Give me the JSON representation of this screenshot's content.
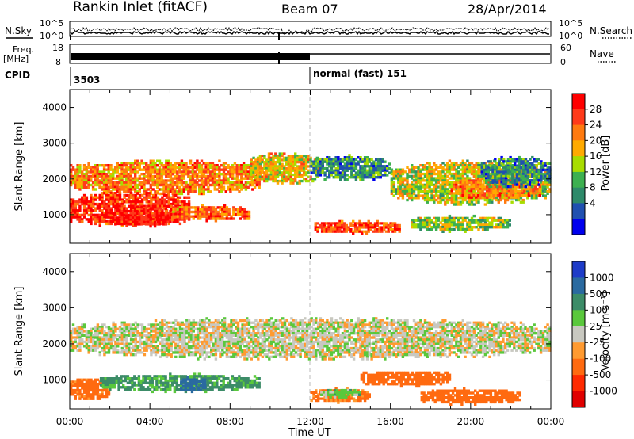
{
  "header": {
    "radar": "Rankin Inlet (fitACF)",
    "beam": "Beam 07",
    "date": "28/Apr/2014"
  },
  "strips": {
    "nsky_label": "N.Sky",
    "nsearch_label": "N.Search",
    "noise_ticks_left": [
      "10^5",
      "10^0"
    ],
    "noise_ticks_right": [
      "10^5",
      "10^0"
    ],
    "freq_label": "Freq.",
    "freq_unit": "[MHz]",
    "freq_ticks": [
      "18",
      "8"
    ],
    "nave_label": "Nave",
    "nave_ticks": [
      "60",
      "0"
    ],
    "cpid_label": "CPID",
    "cpid_start": "3503",
    "cpid_change": "normal (fast) 151"
  },
  "axes": {
    "ylabel": "Slant Range [km]",
    "xlabel": "Time UT",
    "x_ticks": [
      "00:00",
      "04:00",
      "08:00",
      "12:00",
      "16:00",
      "20:00",
      "00:00"
    ],
    "y_ticks": [
      "1000",
      "2000",
      "3000",
      "4000"
    ]
  },
  "power_colorbar": {
    "label": "Power [dB]",
    "ticks": [
      "28",
      "24",
      "20",
      "16",
      "12",
      "8",
      "4"
    ],
    "colors": [
      "#ff0000",
      "#ff3a1a",
      "#ff7a10",
      "#ffaa00",
      "#a8dc00",
      "#3db050",
      "#2e8a6a",
      "#2050b0",
      "#0000ee"
    ]
  },
  "velocity_colorbar": {
    "label": "Velocity [m s⁻¹]",
    "ticks": [
      "1000",
      "500",
      "100",
      "25",
      "-25",
      "-100",
      "-500",
      "-1000"
    ],
    "colors": [
      "#1e3cc8",
      "#2a6aa0",
      "#3c8c68",
      "#5ac83c",
      "#c8c8c0",
      "#ff9a30",
      "#ff6a10",
      "#ff2a00",
      "#e00000"
    ]
  },
  "chart_data": [
    {
      "type": "heatmap",
      "title": "Power",
      "xlabel": "Time UT",
      "ylabel": "Slant Range [km]",
      "xlim": [
        0,
        24
      ],
      "ylim": [
        200,
        4500
      ],
      "colorbar": {
        "label": "Power [dB]",
        "range": [
          0,
          30
        ]
      },
      "blobs": [
        {
          "t": [
            0.0,
            9.5
          ],
          "r": [
            1500,
            2600
          ],
          "v": 22
        },
        {
          "t": [
            0.0,
            6.0
          ],
          "r": [
            600,
            1700
          ],
          "v": 28
        },
        {
          "t": [
            2.0,
            5.5
          ],
          "r": [
            650,
            1250
          ],
          "v": 30
        },
        {
          "t": [
            5.0,
            9.0
          ],
          "r": [
            800,
            1300
          ],
          "v": 24
        },
        {
          "t": [
            9.0,
            12.5
          ],
          "r": [
            1800,
            2800
          ],
          "v": 18
        },
        {
          "t": [
            12.0,
            16.0
          ],
          "r": [
            1900,
            2700
          ],
          "v": 8
        },
        {
          "t": [
            12.2,
            16.5
          ],
          "r": [
            450,
            850
          ],
          "v": 26
        },
        {
          "t": [
            16.0,
            24.0
          ],
          "r": [
            1200,
            2600
          ],
          "v": 16
        },
        {
          "t": [
            19.0,
            23.5
          ],
          "r": [
            1400,
            2100
          ],
          "v": 22
        },
        {
          "t": [
            17.0,
            22.0
          ],
          "r": [
            500,
            1000
          ],
          "v": 14
        },
        {
          "t": [
            20.5,
            24.0
          ],
          "r": [
            1700,
            2700
          ],
          "v": 8
        }
      ]
    },
    {
      "type": "heatmap",
      "title": "Velocity",
      "xlabel": "Time UT",
      "ylabel": "Slant Range [km]",
      "xlim": [
        0,
        24
      ],
      "ylim": [
        200,
        4500
      ],
      "colorbar": {
        "label": "Velocity [m s-1]",
        "range": [
          -1000,
          1000
        ]
      },
      "blobs": [
        {
          "t": [
            0.0,
            24.0
          ],
          "r": [
            1500,
            2800
          ],
          "v": 0
        },
        {
          "t": [
            0.0,
            2.0
          ],
          "r": [
            400,
            1100
          ],
          "v": -150
        },
        {
          "t": [
            1.5,
            9.5
          ],
          "r": [
            650,
            1200
          ],
          "v": 120
        },
        {
          "t": [
            5.5,
            6.8
          ],
          "r": [
            650,
            1100
          ],
          "v": 900
        },
        {
          "t": [
            12.0,
            15.0
          ],
          "r": [
            350,
            800
          ],
          "v": -120
        },
        {
          "t": [
            12.5,
            14.5
          ],
          "r": [
            500,
            750
          ],
          "v": 60
        },
        {
          "t": [
            14.5,
            19.0
          ],
          "r": [
            800,
            1300
          ],
          "v": -200
        },
        {
          "t": [
            17.5,
            22.5
          ],
          "r": [
            300,
            800
          ],
          "v": -300
        }
      ]
    }
  ]
}
